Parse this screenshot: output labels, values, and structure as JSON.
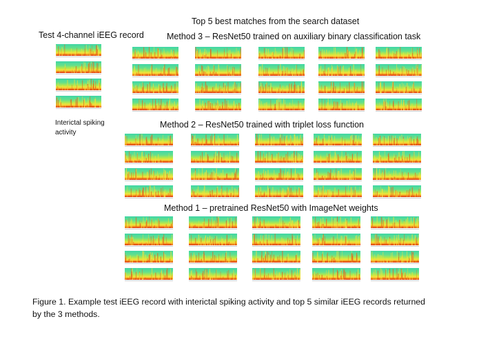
{
  "figure": {
    "heading": "Top 5 best matches from the search dataset",
    "test_label": "Test 4-channel iEEG record",
    "test_annotation_line1": "Interictal spiking",
    "test_annotation_line2": "activity",
    "methods": [
      {
        "title": "Method 3 – ResNet50 trained on auxiliary binary classification task"
      },
      {
        "title": "Method 2 – ResNet50 trained with triplet loss function"
      },
      {
        "title": "Method 1 – pretrained ResNet50 with ImageNet weights"
      }
    ],
    "caption_line1": "Figure 1. Example test iEEG record with interictal spiking activity and top 5 similar iEEG records returned",
    "caption_line2": "by the 3 methods.",
    "colormap": [
      "#3fd6a8",
      "#b8e84a",
      "#f4e23a",
      "#f08a1e",
      "#d8200c"
    ]
  }
}
